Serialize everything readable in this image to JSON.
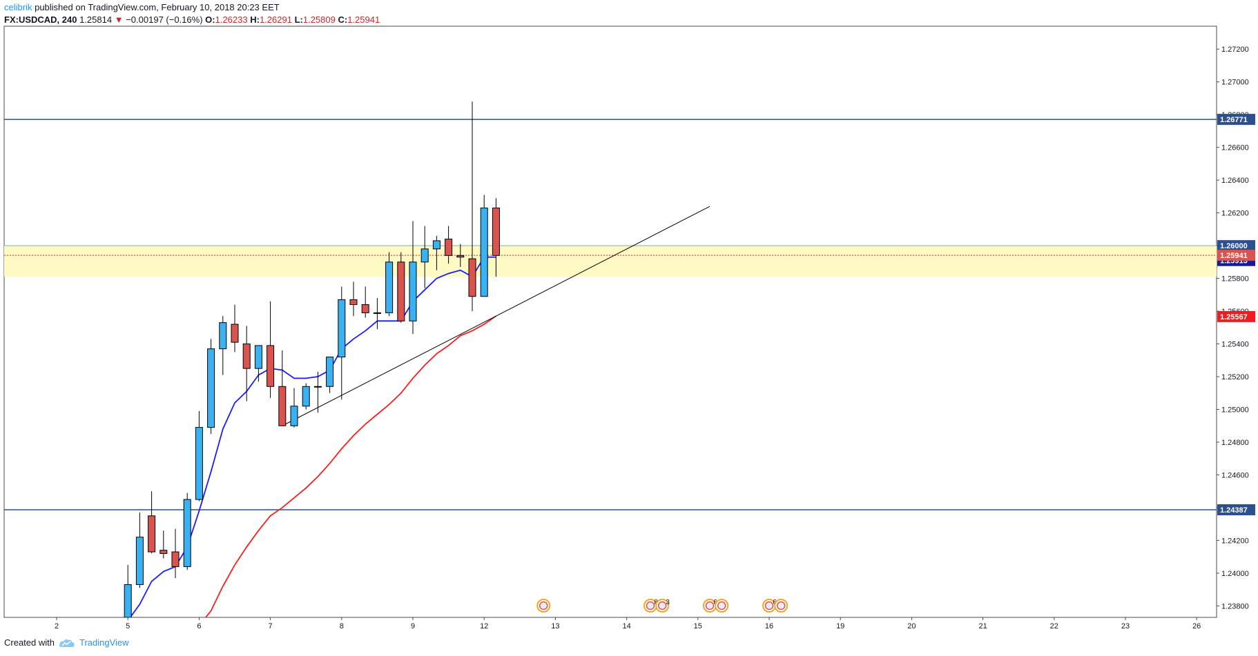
{
  "header": {
    "author": "celibrik",
    "published": "published on TradingView.com, February 10, 2018 20:23 EET",
    "symbol": "FX:USDCAD, 240",
    "last": "1.25814",
    "change_arrow": "▼",
    "change": "−0.00197 (−0.16%)",
    "o_label": "O:",
    "o_val": "1.26233",
    "h_label": "H:",
    "h_val": "1.26291",
    "l_label": "L:",
    "l_val": "1.25809",
    "c_label": "C:",
    "c_val": "1.25941"
  },
  "footer": {
    "created": "Created with",
    "brand": "TradingView",
    "logo_icon": "tradingview-cloud-icon"
  },
  "colors": {
    "up": "#3ab1f0",
    "down": "#d9534f",
    "ema_fast": "#1a1aff",
    "ema_slow": "#ff1a1a",
    "hline": "#2c4f8f",
    "zone": "#fff9c4",
    "trend": "#000000",
    "close_line": "#c62828"
  },
  "chart_data": {
    "type": "candlestick",
    "ylim": [
      1.2373,
      1.2734
    ],
    "y_ticks": [
      "1.27200",
      "1.27000",
      "1.26800",
      "1.26600",
      "1.26400",
      "1.26200",
      "1.26000",
      "1.25800",
      "1.25600",
      "1.25400",
      "1.25200",
      "1.25000",
      "1.24800",
      "1.24600",
      "1.24400",
      "1.24200",
      "1.24000",
      "1.23800"
    ],
    "x_ticks": [
      {
        "label": "2",
        "i": -5
      },
      {
        "label": "5",
        "i": 1
      },
      {
        "label": "6",
        "i": 7
      },
      {
        "label": "7",
        "i": 13
      },
      {
        "label": "8",
        "i": 19
      },
      {
        "label": "9",
        "i": 25
      },
      {
        "label": "12",
        "i": 31
      },
      {
        "label": "13",
        "i": 37
      },
      {
        "label": "14",
        "i": 43
      },
      {
        "label": "15",
        "i": 49
      },
      {
        "label": "16",
        "i": 55
      },
      {
        "label": "19",
        "i": 61
      },
      {
        "label": "20",
        "i": 67
      },
      {
        "label": "21",
        "i": 73
      },
      {
        "label": "22",
        "i": 79
      },
      {
        "label": "23",
        "i": 85
      },
      {
        "label": "26",
        "i": 91
      }
    ],
    "candles": [
      {
        "o": 1.2368,
        "h": 1.2373,
        "l": 1.2365,
        "c": 1.2372
      },
      {
        "o": 1.2373,
        "h": 1.2405,
        "l": 1.2372,
        "c": 1.2393
      },
      {
        "o": 1.2393,
        "h": 1.2437,
        "l": 1.2391,
        "c": 1.2422
      },
      {
        "o": 1.2435,
        "h": 1.245,
        "l": 1.2412,
        "c": 1.2413
      },
      {
        "o": 1.2414,
        "h": 1.2426,
        "l": 1.2409,
        "c": 1.2412
      },
      {
        "o": 1.2413,
        "h": 1.2427,
        "l": 1.2397,
        "c": 1.2404
      },
      {
        "o": 1.2404,
        "h": 1.2449,
        "l": 1.2402,
        "c": 1.2445
      },
      {
        "o": 1.2445,
        "h": 1.2499,
        "l": 1.2444,
        "c": 1.2489
      },
      {
        "o": 1.2489,
        "h": 1.2543,
        "l": 1.2485,
        "c": 1.2537
      },
      {
        "o": 1.2537,
        "h": 1.2557,
        "l": 1.2521,
        "c": 1.2553
      },
      {
        "o": 1.2552,
        "h": 1.2564,
        "l": 1.2535,
        "c": 1.2541
      },
      {
        "o": 1.254,
        "h": 1.2551,
        "l": 1.2505,
        "c": 1.2525
      },
      {
        "o": 1.2525,
        "h": 1.2539,
        "l": 1.2517,
        "c": 1.2539
      },
      {
        "o": 1.2539,
        "h": 1.2566,
        "l": 1.2507,
        "c": 1.2514
      },
      {
        "o": 1.2514,
        "h": 1.2536,
        "l": 1.249,
        "c": 1.249
      },
      {
        "o": 1.249,
        "h": 1.2513,
        "l": 1.2489,
        "c": 1.2502
      },
      {
        "o": 1.2502,
        "h": 1.2516,
        "l": 1.25,
        "c": 1.2514
      },
      {
        "o": 1.2514,
        "h": 1.2523,
        "l": 1.2498,
        "c": 1.2514
      },
      {
        "o": 1.2514,
        "h": 1.2532,
        "l": 1.251,
        "c": 1.2532
      },
      {
        "o": 1.2532,
        "h": 1.2575,
        "l": 1.2506,
        "c": 1.2567
      },
      {
        "o": 1.2567,
        "h": 1.2578,
        "l": 1.2557,
        "c": 1.2564
      },
      {
        "o": 1.2564,
        "h": 1.2575,
        "l": 1.2556,
        "c": 1.2559
      },
      {
        "o": 1.2559,
        "h": 1.2568,
        "l": 1.2549,
        "c": 1.2559
      },
      {
        "o": 1.2559,
        "h": 1.2596,
        "l": 1.2557,
        "c": 1.259
      },
      {
        "o": 1.259,
        "h": 1.2596,
        "l": 1.2553,
        "c": 1.2554
      },
      {
        "o": 1.2554,
        "h": 1.2615,
        "l": 1.2546,
        "c": 1.259
      },
      {
        "o": 1.259,
        "h": 1.2612,
        "l": 1.2574,
        "c": 1.2598
      },
      {
        "o": 1.2598,
        "h": 1.2606,
        "l": 1.2585,
        "c": 1.2603
      },
      {
        "o": 1.2604,
        "h": 1.2612,
        "l": 1.2589,
        "c": 1.2594
      },
      {
        "o": 1.2594,
        "h": 1.2601,
        "l": 1.2587,
        "c": 1.2593
      },
      {
        "o": 1.2592,
        "h": 1.2688,
        "l": 1.256,
        "c": 1.2569
      },
      {
        "o": 1.2569,
        "h": 1.2631,
        "l": 1.2569,
        "c": 1.2623
      },
      {
        "o": 1.2623,
        "h": 1.2629,
        "l": 1.2581,
        "c": 1.2594
      }
    ],
    "ema_fast": [
      1.2368,
      1.2371,
      1.2381,
      1.2395,
      1.2401,
      1.2404,
      1.2416,
      1.2438,
      1.2462,
      1.2488,
      1.2504,
      1.2511,
      1.2521,
      1.2525,
      1.2524,
      1.2519,
      1.2519,
      1.252,
      1.2524,
      1.2537,
      1.2543,
      1.2548,
      1.2554,
      1.2554,
      1.2554,
      1.2566,
      1.2573,
      1.258,
      1.2583,
      1.2585,
      1.2581,
      1.2593,
      1.2593
    ],
    "ema_slow": [
      1.236,
      1.2368,
      1.2377,
      1.2392,
      1.2405,
      1.2416,
      1.2426,
      1.2435,
      1.244,
      1.2446,
      1.2452,
      1.2459,
      1.2467,
      1.2476,
      1.2484,
      1.2491,
      1.2497,
      1.2503,
      1.251,
      1.2519,
      1.2527,
      1.2534,
      1.2539,
      1.2545,
      1.2548,
      1.2552,
      1.2557
    ],
    "ema_slow_start_index": 6,
    "h_lines": [
      {
        "price": 1.26771,
        "label": "1.26771"
      },
      {
        "price": 1.24387,
        "label": "1.24387"
      }
    ],
    "zone": {
      "top": 1.26,
      "bottom": 1.2581,
      "label": "1.26000"
    },
    "close_tag": {
      "price": 1.25941,
      "label": "1.25941",
      "hidden_label": "1.25913"
    },
    "ema_tag": {
      "price": 1.25567,
      "label": "1.25567"
    },
    "trendline": {
      "i1": 14,
      "p1": 1.249,
      "i2": 50,
      "p2": 1.2624
    },
    "events": [
      {
        "i": 36,
        "count": ""
      },
      {
        "i": 45,
        "count": "8"
      },
      {
        "i": 46,
        "count": "3"
      },
      {
        "i": 50,
        "count": "6"
      },
      {
        "i": 51,
        "count": ""
      },
      {
        "i": 55,
        "count": "6"
      },
      {
        "i": 56,
        "count": ""
      }
    ]
  }
}
